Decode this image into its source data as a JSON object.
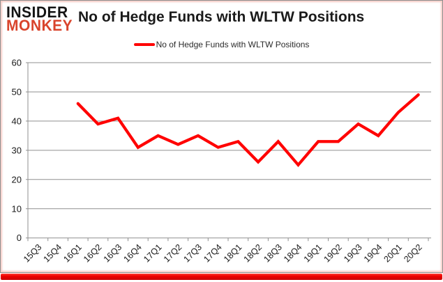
{
  "logo": {
    "line1": "INSIDER",
    "line2": "MONKEY"
  },
  "header": {
    "title": "No of Hedge Funds with WLTW Positions"
  },
  "legend": {
    "label": "No of Hedge Funds with WLTW Positions"
  },
  "colors": {
    "line": "#ff0000",
    "grid": "#8f8f8f",
    "axis_text": "#1a1a1a",
    "logo_primary": "#141414",
    "logo_accent": "#d9442c",
    "bottom_bar": "#ee0000",
    "frame_border": "#8f8f8f"
  },
  "chart_data": {
    "type": "line",
    "title": "No of Hedge Funds with WLTW Positions",
    "categories": [
      "15Q3",
      "15Q4",
      "16Q1",
      "16Q2",
      "16Q3",
      "16Q4",
      "17Q1",
      "17Q2",
      "17Q3",
      "17Q4",
      "18Q1",
      "18Q2",
      "18Q3",
      "18Q4",
      "19Q1",
      "19Q2",
      "19Q3",
      "19Q4",
      "20Q1",
      "20Q2"
    ],
    "series": [
      {
        "name": "No of Hedge Funds with WLTW Positions",
        "values": [
          null,
          null,
          46,
          39,
          41,
          31,
          35,
          32,
          35,
          31,
          33,
          26,
          33,
          25,
          33,
          33,
          39,
          35,
          43,
          49
        ]
      }
    ],
    "xlabel": "",
    "ylabel": "",
    "ylim": [
      0,
      60
    ],
    "ytick_step": 10,
    "yticks": [
      0,
      10,
      20,
      30,
      40,
      50,
      60
    ],
    "grid": true,
    "legend_position": "top"
  }
}
